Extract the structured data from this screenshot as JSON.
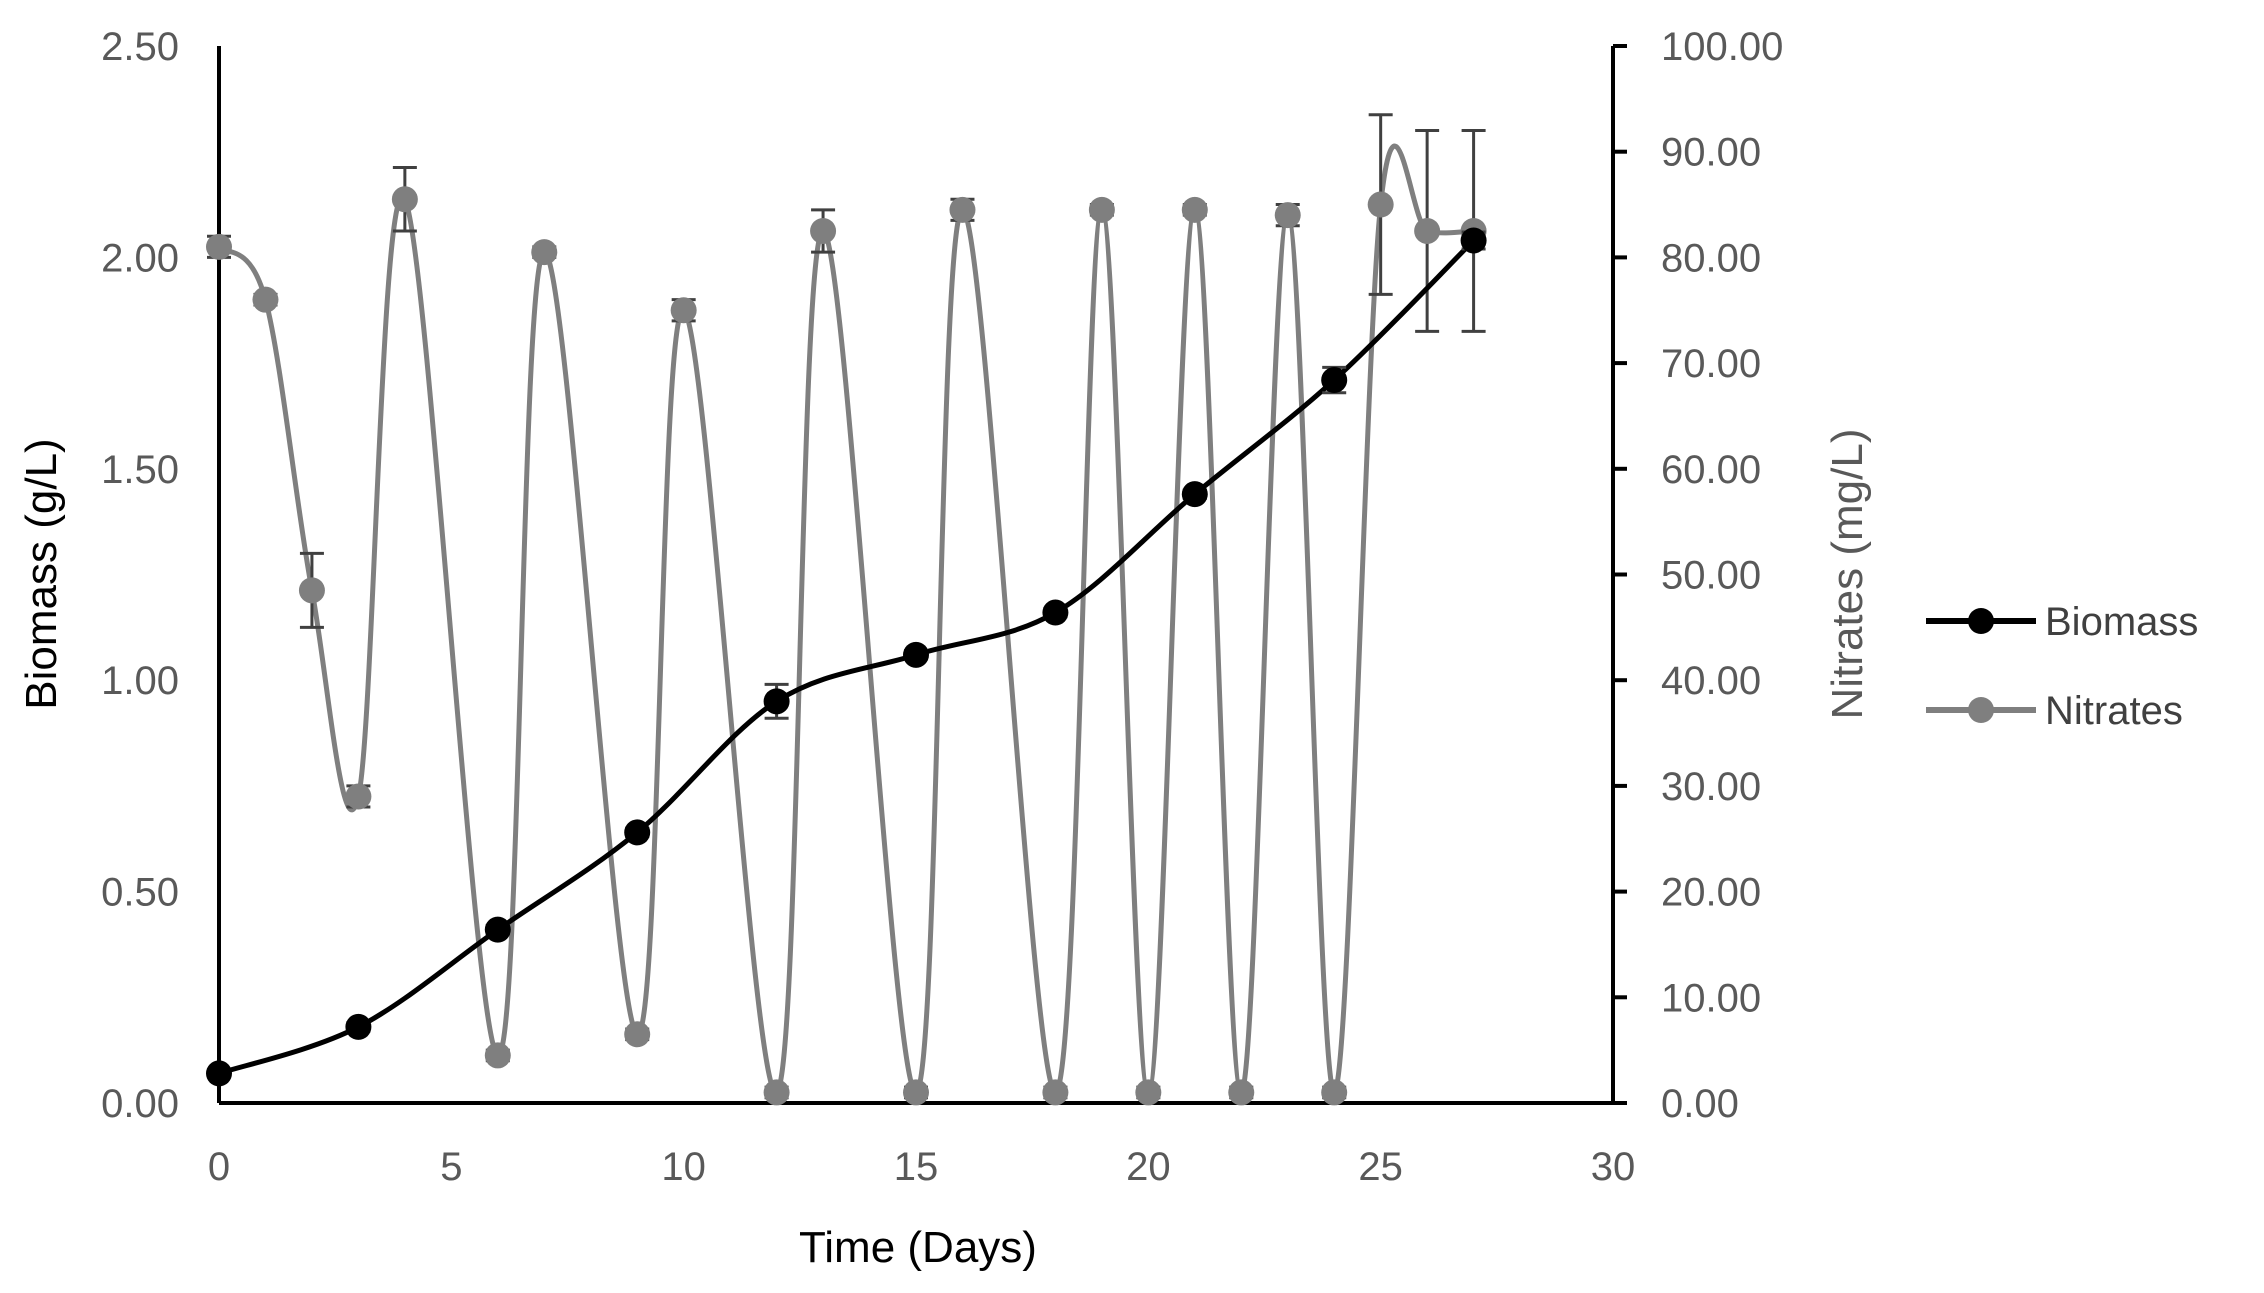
{
  "chart_data": {
    "type": "line",
    "title": "",
    "xlabel": "Time (Days)",
    "ylabel": "Biomass (g/L)",
    "y2label": "Nitrates (mg/L)",
    "xlim": [
      0,
      30
    ],
    "ylim": [
      0,
      2.5
    ],
    "y2lim": [
      0,
      100
    ],
    "xticks": [
      "0",
      "5",
      "10",
      "15",
      "20",
      "25",
      "30"
    ],
    "xtick_values": [
      0,
      5,
      10,
      15,
      20,
      25,
      30
    ],
    "yticks": [
      "0.00",
      "0.50",
      "1.00",
      "1.50",
      "2.00",
      "2.50"
    ],
    "ytick_values": [
      0,
      0.5,
      1.0,
      1.5,
      2.0,
      2.5
    ],
    "y2ticks": [
      "0.00",
      "10.00",
      "20.00",
      "30.00",
      "40.00",
      "50.00",
      "60.00",
      "70.00",
      "80.00",
      "90.00",
      "100.00"
    ],
    "y2tick_values": [
      0,
      10,
      20,
      30,
      40,
      50,
      60,
      70,
      80,
      90,
      100
    ],
    "grid": false,
    "legend_position": "right",
    "series": [
      {
        "name": "Biomass",
        "axis": "left",
        "color": "#000000",
        "x": [
          0,
          3,
          6,
          9,
          12,
          15,
          18,
          21,
          24,
          27
        ],
        "values": [
          0.07,
          0.18,
          0.41,
          0.64,
          0.95,
          1.06,
          1.16,
          1.44,
          1.71,
          2.04
        ],
        "errors": [
          0,
          0.01,
          0.01,
          0.01,
          0.04,
          0.01,
          0.01,
          0.01,
          0.03,
          0.02
        ]
      },
      {
        "name": "Nitrates",
        "axis": "right",
        "color": "#7f7f7f",
        "x": [
          0,
          1,
          2,
          3,
          4,
          6,
          7,
          9,
          10,
          12,
          13,
          15,
          16,
          18,
          19,
          20,
          21,
          22,
          23,
          24,
          25,
          26,
          27
        ],
        "values": [
          81,
          76,
          48.5,
          29,
          85.5,
          4.5,
          80.5,
          6.5,
          75,
          1,
          82.5,
          1,
          84.5,
          1,
          84.5,
          1,
          84.5,
          1,
          84,
          1,
          85,
          82.5,
          82.5
        ],
        "errors": [
          1,
          0.5,
          3.5,
          1,
          3,
          0.5,
          0.5,
          0.5,
          1,
          0.5,
          2,
          0.5,
          1,
          0.5,
          0.5,
          0.5,
          0.5,
          0.5,
          1,
          0.5,
          8.5,
          9.5,
          9.5
        ]
      }
    ]
  }
}
